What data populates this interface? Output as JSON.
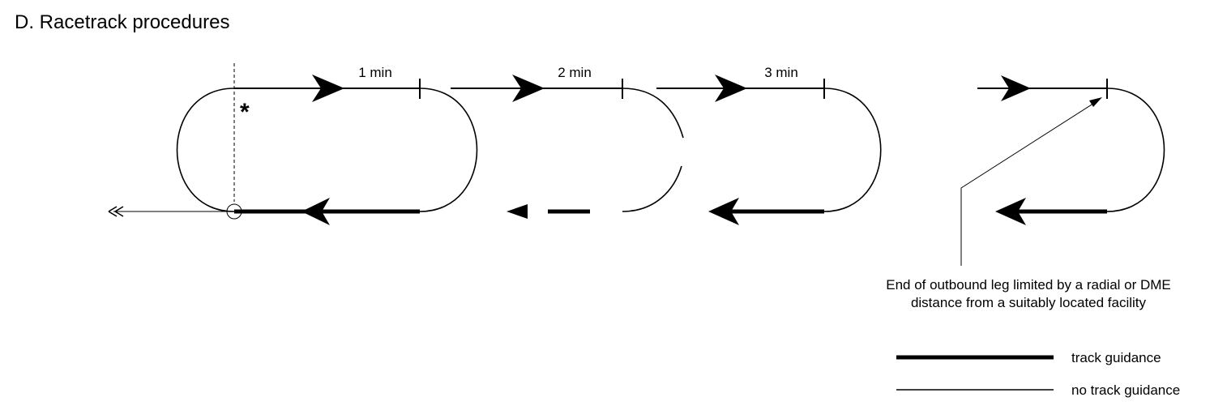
{
  "title": "D. Racetrack procedures",
  "timings": [
    "1 min",
    "2 min",
    "3 min"
  ],
  "asterisk": "*",
  "annotation": {
    "line1": "End of outbound leg limited by a radial or DME",
    "line2": "distance from a suitably located facility"
  },
  "legend": {
    "track_guidance": "track guidance",
    "no_track_guidance": "no track guidance"
  }
}
